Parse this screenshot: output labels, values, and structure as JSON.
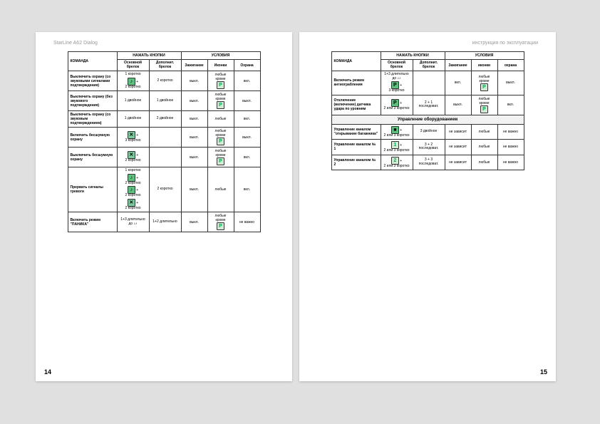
{
  "meta": {
    "title_l": "StarLine A62 Dialog",
    "title_r": "инструкция по эксплуатации",
    "page_l": "14",
    "page_r": "15"
  },
  "hdr": {
    "cmd": "КОМАНДА",
    "press": "НАЖАТЬ  КНОПКИ",
    "cond": "УСЛОВИЯ",
    "main": "Основной брелок",
    "aux": "Дополнит. брелок",
    "ign": "Зажигание",
    "win": "Иконки",
    "guard": "Охрана",
    "ignR": "Зажигание",
    "winR": "иконки",
    "guardR": "охрана"
  },
  "txt": {
    "off": "выкл.",
    "on": "вкл.",
    "any": "любые кроме",
    "anyb": "любые",
    "nz": "не зависит",
    "nv": "не важно",
    "k1": "1 коротко",
    "k2": "2 коротко",
    "k3": "3 коротко",
    "d1": "1 двойное",
    "d2": "1 двойное",
    "lg": "1+3 длительно до ♪♪",
    "lg2": "1+2 длительно",
    "p21": "2 + 1 последоват.",
    "p3d": "3 двойное",
    "p2n3": "2 или 3 коротко",
    "p32": "3 + 2 последоват.",
    "p33": "3 + 3 последоват.",
    "sec_equip": "Управление оборудованием"
  },
  "rowsL": [
    {
      "cmd": "Выключить охрану (со звуковыми сигналами подтверждения)",
      "aux": "2 коротко",
      "ign": "выкл.",
      "win": "любые кроме",
      "guard": "вкл."
    },
    {
      "cmd": "Выключить охрану (без звукового подтверждения)",
      "main": "1 двойное",
      "aux": "1 двойное",
      "ign": "выкл.",
      "win": "любые кроме",
      "guard": "выкл."
    },
    {
      "cmd": "Выключить охрану (со звуковым подтверждением)",
      "main": "1 двойное",
      "aux": "2 двойное",
      "ign": "выкл.",
      "win": "любые",
      "guard": "вкл."
    },
    {
      "cmd": "Включить бесшумную охрану",
      "aux": "",
      "ign": "выкл.",
      "win": "любые кроме",
      "guard": "выкл."
    },
    {
      "cmd": "Выключить бесшумную охрану",
      "aux": "",
      "ign": "выкл.",
      "win": "любые кроме",
      "guard": "вкл."
    },
    {
      "cmd": "Прервать сигналы тревоги",
      "aux": "2 коротко",
      "ign": "выкл.",
      "win": "любые",
      "guard": "вкл."
    },
    {
      "cmd": "Включить режим \"ПАНИКА\"",
      "main": "1+3 длительно до ♪♪",
      "aux": "1+2 длительно",
      "ign": "выкл.",
      "win": "любые кроме",
      "guard": "не важно"
    }
  ],
  "rowsR": [
    {
      "cmd": "Включить режим антиограбления",
      "mainT": "1+3 длительно до ♪♪",
      "mainB": "3 коротко",
      "aux": "",
      "ign": "вкл.",
      "win": "любые кроме",
      "guard": "выкл."
    },
    {
      "cmd": "Отключение (включение) датчика удара по уровням",
      "aux": "2 + 1 последоват.",
      "ign": "выкл.",
      "win": "любые кроме",
      "guard": "вкл."
    },
    {
      "cmd": "Управление каналом \"открывание багажника\"",
      "aux": "3 двойное",
      "ign": "не зависит",
      "win": "любые",
      "guard": "не важно"
    },
    {
      "cmd": "Управление каналом № 1",
      "aux": "3 + 2 последоват.",
      "ign": "не зависит",
      "win": "любые",
      "guard": "не важно"
    },
    {
      "cmd": "Управление каналом № 2",
      "aux": "3 + 3 последоват.",
      "ign": "не зависит",
      "win": "любые",
      "guard": "не важно"
    }
  ],
  "icons": {
    "lock": "🔒",
    "unlock": "🔓",
    "x": "✕",
    "note": "♪",
    "car": "P",
    "one": "1",
    "two": "2",
    "sq": "■"
  },
  "colors": {
    "green": "#5fbf7f",
    "lg": "#d4ead4",
    "border": "#333"
  }
}
